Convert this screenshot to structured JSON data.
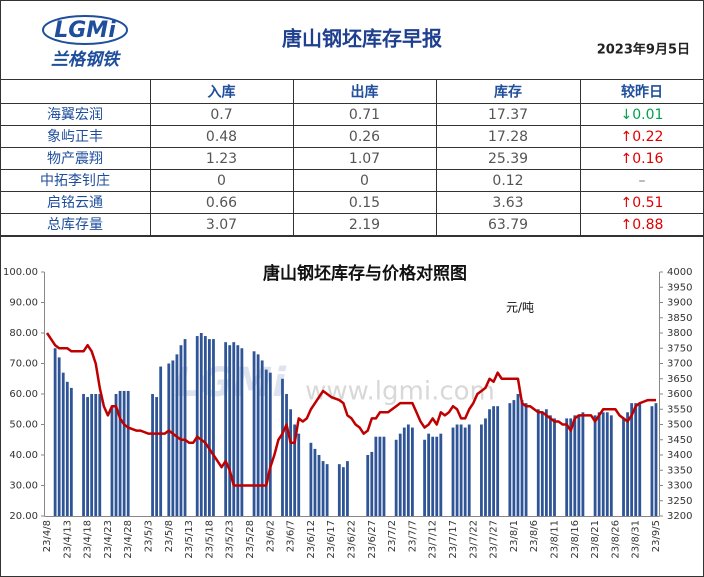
{
  "header": {
    "logo": "LGMi",
    "brand": "兰格钢铁",
    "title": "唐山钢坯库存早报",
    "date": "2023年9月5日"
  },
  "table": {
    "columns": [
      "入库",
      "出库",
      "库存",
      "较昨日"
    ],
    "rows": [
      [
        "海翼宏润",
        "0.7",
        "0.71",
        "17.37",
        {
          "text": "↓0.01",
          "color": "#00a050"
        }
      ],
      [
        "象屿正丰",
        "0.48",
        "0.26",
        "17.28",
        {
          "text": "↑0.22",
          "color": "#e00000"
        }
      ],
      [
        "物产震翔",
        "1.23",
        "1.07",
        "25.39",
        {
          "text": "↑0.16",
          "color": "#e00000"
        }
      ],
      [
        "中拓李钊庄",
        "0",
        "0",
        "0.12",
        {
          "text": "–",
          "color": "#777777"
        }
      ],
      [
        "启铭云通",
        "0.66",
        "0.15",
        "3.63",
        {
          "text": "↑0.51",
          "color": "#e00000"
        }
      ],
      [
        "总库存量",
        "3.07",
        "2.19",
        "63.79",
        {
          "text": "↑0.88",
          "color": "#e00000"
        }
      ]
    ]
  },
  "chart_data": {
    "type": "bar",
    "title": "唐山钢坯库存与价格对照图",
    "y2_label": "元/吨",
    "watermark": "www.lgmi.com",
    "categories": [
      "23/4/8",
      null,
      null,
      null,
      null,
      "23/4/13",
      null,
      null,
      null,
      null,
      "23/4/18",
      null,
      null,
      null,
      null,
      "23/4/23",
      null,
      null,
      null,
      null,
      "23/4/28",
      null,
      null,
      null,
      null,
      "23/5/3",
      null,
      null,
      null,
      null,
      "23/5/8",
      null,
      null,
      null,
      null,
      "23/5/13",
      null,
      null,
      null,
      null,
      "23/5/18",
      null,
      null,
      null,
      null,
      "23/5/23",
      null,
      null,
      null,
      null,
      "23/5/28",
      null,
      null,
      null,
      null,
      "23/6/2",
      null,
      null,
      null,
      null,
      "23/6/7",
      null,
      null,
      null,
      null,
      "23/6/12",
      null,
      null,
      null,
      null,
      "23/6/17",
      null,
      null,
      null,
      null,
      "23/6/22",
      null,
      null,
      null,
      null,
      "23/6/27",
      null,
      null,
      null,
      null,
      "23/7/2",
      null,
      null,
      null,
      null,
      "23/7/7",
      null,
      null,
      null,
      null,
      "23/7/12",
      null,
      null,
      null,
      null,
      "23/7/17",
      null,
      null,
      null,
      null,
      "23/7/22",
      null,
      null,
      null,
      null,
      "23/7/27",
      null,
      null,
      null,
      null,
      "23/8/1",
      null,
      null,
      null,
      null,
      "23/8/6",
      null,
      null,
      null,
      null,
      "23/8/11",
      null,
      null,
      null,
      null,
      "23/8/16",
      null,
      null,
      null,
      null,
      "23/8/21",
      null,
      null,
      null,
      null,
      "23/8/26",
      null,
      null,
      null,
      null,
      "23/8/31",
      null,
      null,
      null,
      null,
      "23/9/5"
    ],
    "series": [
      {
        "type": "bar",
        "color": "#2f5597",
        "values": [
          null,
          null,
          75,
          72,
          67,
          64,
          62,
          null,
          null,
          60,
          59,
          60,
          60,
          60,
          null,
          null,
          56,
          60,
          61,
          61,
          61,
          null,
          null,
          null,
          null,
          null,
          60,
          59,
          69,
          null,
          70,
          71,
          73,
          76,
          78,
          null,
          null,
          79,
          80,
          79,
          78,
          78,
          null,
          null,
          77,
          76,
          77,
          76,
          75,
          null,
          null,
          74,
          73,
          71,
          68,
          67,
          null,
          null,
          65,
          60,
          55,
          50,
          47,
          null,
          null,
          44,
          42,
          40,
          38,
          37,
          null,
          null,
          37,
          36,
          38,
          null,
          null,
          null,
          null,
          40,
          41,
          46,
          46,
          46,
          null,
          null,
          45,
          47,
          49,
          50,
          49,
          null,
          null,
          45,
          47,
          46,
          46,
          47,
          null,
          null,
          49,
          50,
          50,
          49,
          50,
          null,
          null,
          50,
          52,
          55,
          56,
          56,
          null,
          null,
          57,
          58,
          60,
          58,
          57,
          null,
          null,
          55,
          54,
          55,
          53,
          52,
          null,
          null,
          52,
          52,
          53,
          53,
          54,
          null,
          null,
          53,
          54,
          54,
          54,
          53,
          null,
          null,
          52,
          54,
          57,
          57,
          57,
          null,
          null,
          56,
          57
        ]
      },
      {
        "type": "line",
        "axis": "y2",
        "color": "#c00000",
        "values": [
          3800,
          3780,
          3760,
          3750,
          3750,
          3750,
          3740,
          3740,
          3740,
          3740,
          3760,
          3740,
          3700,
          3620,
          3560,
          3530,
          3560,
          3560,
          3520,
          3500,
          3490,
          3485,
          3480,
          3480,
          3475,
          3470,
          3470,
          3470,
          3470,
          3470,
          3480,
          3470,
          3460,
          3450,
          3450,
          3440,
          3440,
          3460,
          3450,
          3440,
          3420,
          3400,
          3380,
          3360,
          3380,
          3350,
          3300,
          3300,
          3300,
          3300,
          3300,
          3300,
          3300,
          3300,
          3300,
          3360,
          3400,
          3450,
          3470,
          3500,
          3440,
          3440,
          3520,
          3510,
          3520,
          3550,
          3570,
          3590,
          3610,
          3600,
          3590,
          3585,
          3580,
          3570,
          3530,
          3520,
          3500,
          3490,
          3470,
          3480,
          3520,
          3520,
          3540,
          3540,
          3540,
          3550,
          3560,
          3570,
          3570,
          3570,
          3570,
          3540,
          3510,
          3490,
          3500,
          3520,
          3500,
          3540,
          3530,
          3540,
          3560,
          3550,
          3520,
          3520,
          3550,
          3570,
          3600,
          3610,
          3620,
          3650,
          3640,
          3670,
          3650,
          3650,
          3650,
          3650,
          3650,
          3570,
          3560,
          3560,
          3550,
          3540,
          3540,
          3530,
          3520,
          3510,
          3510,
          3500,
          3500,
          3480,
          3520,
          3530,
          3530,
          3530,
          3530,
          3510,
          3530,
          3550,
          3550,
          3550,
          3550,
          3530,
          3520,
          3510,
          3530,
          3560,
          3570,
          3575,
          3580,
          3580,
          3580
        ]
      }
    ],
    "ylim": [
      20,
      100
    ],
    "yticks": [
      {
        "value": 20,
        "label": "20.00"
      },
      {
        "value": 30,
        "label": "30.00"
      },
      {
        "value": 40,
        "label": "40.00"
      },
      {
        "value": 50,
        "label": "50.00"
      },
      {
        "value": 60,
        "label": "60.00"
      },
      {
        "value": 70,
        "label": "70.00"
      },
      {
        "value": 80,
        "label": "80.00"
      },
      {
        "value": 90,
        "label": "90.00"
      },
      {
        "value": 100,
        "label": "100.00"
      }
    ],
    "y2lim": [
      3200,
      4000
    ],
    "y2ticks": [
      3200,
      3250,
      3300,
      3350,
      3400,
      3450,
      3500,
      3550,
      3600,
      3650,
      3700,
      3750,
      3800,
      3850,
      3900,
      3950,
      4000
    ]
  }
}
